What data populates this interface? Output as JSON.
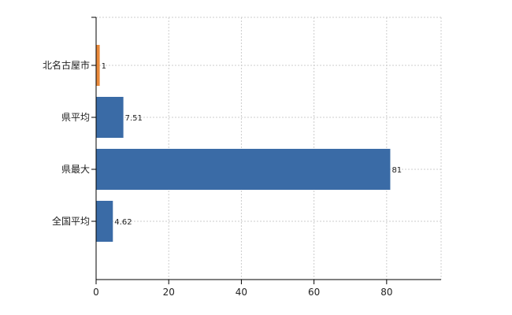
{
  "chart_data": {
    "type": "bar",
    "orientation": "horizontal",
    "categories": [
      "北名古屋市",
      "県平均",
      "県最大",
      "全国平均"
    ],
    "values": [
      1,
      7.51,
      81,
      4.62
    ],
    "value_labels": [
      "1",
      "7.51",
      "81",
      "4.62"
    ],
    "bar_colors": [
      "#e8893a",
      "#3a6ba6",
      "#3a6ba6",
      "#3a6ba6"
    ],
    "xlim": [
      0,
      95
    ],
    "xticks": [
      0,
      20,
      40,
      60,
      80
    ],
    "xtick_labels": [
      "0",
      "20",
      "40",
      "60",
      "80"
    ],
    "grid": true,
    "gridline_style": "dotted",
    "title": "",
    "xlabel": "",
    "ylabel": ""
  },
  "colors": {
    "highlight": "#e8893a",
    "bar": "#3a6ba6",
    "grid": "#cccccc",
    "axis": "#000000"
  }
}
